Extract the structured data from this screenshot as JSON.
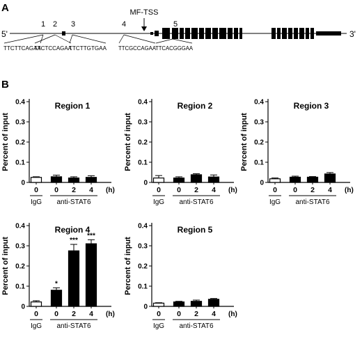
{
  "gene": {
    "panel_label": "A",
    "end5": "5'",
    "end3": "3'",
    "tss_label": "MF-TSS",
    "site_numbers": [
      "1",
      "2",
      "3",
      "4",
      "5"
    ],
    "site_sequences": [
      "TTCTTCAGAA",
      "TTCTCCAGAA",
      "TTCTTGTGAA",
      "TTCGCCAGAA",
      "TTCACGGGAA"
    ]
  },
  "panel_b_label": "B",
  "chart_data": [
    {
      "type": "bar",
      "title": "Region 1",
      "ylabel": "Percent of input",
      "ylim": [
        0,
        0.4
      ],
      "yticks": [
        0,
        0.1,
        0.2,
        0.3,
        0.4
      ],
      "categories": [
        "0",
        "0",
        "2",
        "4"
      ],
      "x_unit": "(h)",
      "groups": [
        {
          "label": "IgG",
          "categories": 1
        },
        {
          "label": "anti-STAT6",
          "categories": 3
        }
      ],
      "values": [
        0.025,
        0.028,
        0.022,
        0.025
      ],
      "errors": [
        0.003,
        0.008,
        0.006,
        0.008
      ],
      "colors": [
        "#ffffff",
        "#000000",
        "#000000",
        "#000000"
      ],
      "annotations": [
        "",
        "",
        "",
        ""
      ]
    },
    {
      "type": "bar",
      "title": "Region 2",
      "ylabel": "Percent of input",
      "ylim": [
        0,
        0.4
      ],
      "yticks": [
        0,
        0.1,
        0.2,
        0.3,
        0.4
      ],
      "categories": [
        "0",
        "0",
        "2",
        "4"
      ],
      "x_unit": "(h)",
      "groups": [
        {
          "label": "IgG",
          "categories": 1
        },
        {
          "label": "anti-STAT6",
          "categories": 3
        }
      ],
      "values": [
        0.022,
        0.022,
        0.038,
        0.027
      ],
      "errors": [
        0.012,
        0.006,
        0.005,
        0.01
      ],
      "colors": [
        "#ffffff",
        "#000000",
        "#000000",
        "#000000"
      ],
      "annotations": [
        "",
        "",
        "",
        ""
      ]
    },
    {
      "type": "bar",
      "title": "Region 3",
      "ylabel": "Percent of input",
      "ylim": [
        0,
        0.4
      ],
      "yticks": [
        0,
        0.1,
        0.2,
        0.3,
        0.4
      ],
      "categories": [
        "0",
        "0",
        "2",
        "4"
      ],
      "x_unit": "(h)",
      "groups": [
        {
          "label": "IgG",
          "categories": 1
        },
        {
          "label": "anti-STAT6",
          "categories": 3
        }
      ],
      "values": [
        0.018,
        0.026,
        0.026,
        0.042
      ],
      "errors": [
        0.004,
        0.005,
        0.003,
        0.007
      ],
      "colors": [
        "#ffffff",
        "#000000",
        "#000000",
        "#000000"
      ],
      "annotations": [
        "",
        "",
        "",
        ""
      ]
    },
    {
      "type": "bar",
      "title": "Region 4",
      "ylabel": "Percent of input",
      "ylim": [
        0,
        0.4
      ],
      "yticks": [
        0,
        0.1,
        0.2,
        0.3,
        0.4
      ],
      "categories": [
        "0",
        "0",
        "2",
        "4"
      ],
      "x_unit": "(h)",
      "groups": [
        {
          "label": "IgG",
          "categories": 1
        },
        {
          "label": "anti-STAT6",
          "categories": 3
        }
      ],
      "values": [
        0.022,
        0.08,
        0.275,
        0.31
      ],
      "errors": [
        0.006,
        0.012,
        0.032,
        0.02
      ],
      "colors": [
        "#ffffff",
        "#000000",
        "#000000",
        "#000000"
      ],
      "annotations": [
        "",
        "*",
        "***",
        "***"
      ]
    },
    {
      "type": "bar",
      "title": "Region 5",
      "ylabel": "Percent of input",
      "ylim": [
        0,
        0.4
      ],
      "yticks": [
        0,
        0.1,
        0.2,
        0.3,
        0.4
      ],
      "categories": [
        "0",
        "0",
        "2",
        "4"
      ],
      "x_unit": "(h)",
      "groups": [
        {
          "label": "IgG",
          "categories": 1
        },
        {
          "label": "anti-STAT6",
          "categories": 3
        }
      ],
      "values": [
        0.016,
        0.022,
        0.025,
        0.035
      ],
      "errors": [
        0.002,
        0.003,
        0.006,
        0.004
      ],
      "colors": [
        "#ffffff",
        "#000000",
        "#000000",
        "#000000"
      ],
      "annotations": [
        "",
        "",
        "",
        ""
      ]
    }
  ]
}
